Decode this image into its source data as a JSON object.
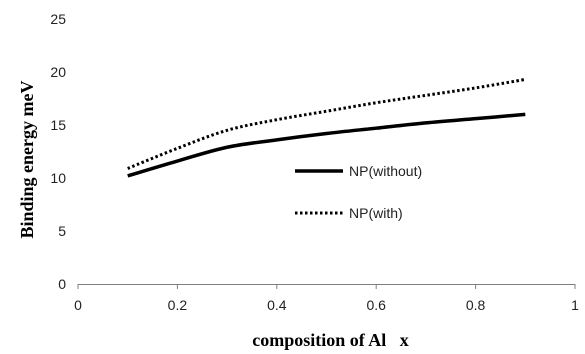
{
  "chart_data": {
    "type": "line",
    "title": "",
    "xlabel": "composition of Al   x",
    "ylabel": "Binding energy meV",
    "xlim": [
      0,
      1
    ],
    "ylim": [
      0,
      25
    ],
    "xticks": [
      0,
      0.2,
      0.4,
      0.6,
      0.8,
      1
    ],
    "yticks": [
      0,
      5,
      10,
      15,
      20,
      25
    ],
    "xtick_labels": [
      "0",
      "0.2",
      "0.4",
      "0.6",
      "0.8",
      "1"
    ],
    "ytick_labels": [
      "0",
      "5",
      "10",
      "15",
      "20",
      "25"
    ],
    "grid": false,
    "legend_position": "center-right",
    "series": [
      {
        "name": "NP(without)",
        "style": "solid",
        "color": "#000000",
        "x": [
          0.1,
          0.2,
          0.3,
          0.4,
          0.5,
          0.6,
          0.7,
          0.8,
          0.9
        ],
        "y": [
          10.2,
          11.6,
          12.9,
          13.6,
          14.2,
          14.7,
          15.2,
          15.6,
          16.0
        ]
      },
      {
        "name": "NP(with)",
        "style": "dotted",
        "color": "#000000",
        "x": [
          0.1,
          0.2,
          0.3,
          0.4,
          0.5,
          0.6,
          0.7,
          0.8,
          0.9
        ],
        "y": [
          10.9,
          12.8,
          14.5,
          15.5,
          16.3,
          17.1,
          17.8,
          18.5,
          19.3
        ]
      }
    ]
  }
}
